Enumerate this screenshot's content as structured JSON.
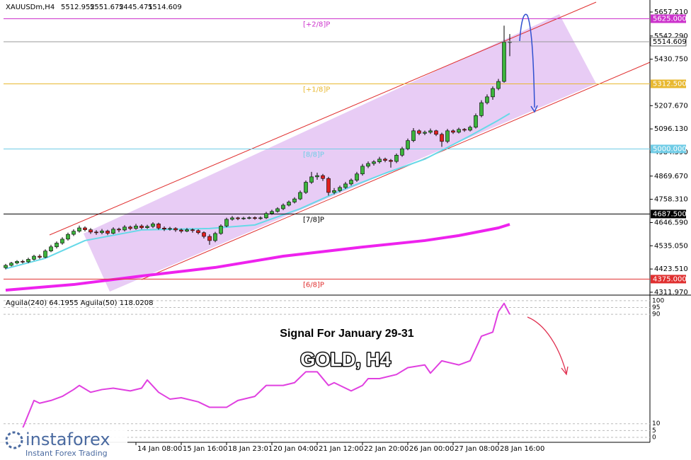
{
  "chart_data": [
    {
      "type": "candlestick",
      "symbol": "XAUUSDm,H4",
      "categories": [
        null,
        null,
        null,
        null,
        null,
        null,
        null,
        null,
        null,
        null,
        null,
        null,
        null,
        null,
        null,
        null,
        null,
        null,
        null,
        null,
        null,
        null,
        null,
        "14 Jan 08:00",
        null,
        null,
        null,
        null,
        null,
        null,
        null,
        "15 Jan 16:00",
        null,
        null,
        null,
        null,
        null,
        null,
        null,
        "18 Jan 23:01",
        null,
        null,
        null,
        null,
        null,
        null,
        null,
        "20 Jan 04:00",
        null,
        null,
        null,
        null,
        null,
        null,
        null,
        "21 Jan 12:00",
        null,
        null,
        null,
        null,
        null,
        null,
        null,
        "22 Jan 20:00",
        null,
        null,
        null,
        null,
        null,
        null,
        null,
        "26 Jan 00:00",
        null,
        null,
        null,
        null,
        null,
        null,
        null,
        "27 Jan 08:00",
        null,
        null,
        null,
        null,
        null,
        null,
        null,
        "28 Jan 16:00",
        null,
        null
      ],
      "candles": [
        [
          4430,
          4448,
          4422,
          4441
        ],
        [
          4441,
          4458,
          4436,
          4452
        ],
        [
          4452,
          4466,
          4446,
          4460
        ],
        [
          4460,
          4468,
          4450,
          4458
        ],
        [
          4458,
          4478,
          4452,
          4470
        ],
        [
          4470,
          4492,
          4464,
          4485
        ],
        [
          4485,
          4494,
          4472,
          4480
        ],
        [
          4480,
          4518,
          4476,
          4510
        ],
        [
          4510,
          4540,
          4504,
          4530
        ],
        [
          4530,
          4556,
          4522,
          4548
        ],
        [
          4548,
          4576,
          4540,
          4567
        ],
        [
          4567,
          4598,
          4560,
          4590
        ],
        [
          4590,
          4614,
          4582,
          4605
        ],
        [
          4605,
          4632,
          4598,
          4621
        ],
        [
          4621,
          4628,
          4604,
          4612
        ],
        [
          4612,
          4620,
          4592,
          4601
        ],
        [
          4601,
          4610,
          4588,
          4598
        ],
        [
          4598,
          4616,
          4590,
          4606
        ],
        [
          4606,
          4612,
          4586,
          4595
        ],
        [
          4595,
          4624,
          4590,
          4615
        ],
        [
          4615,
          4622,
          4600,
          4611
        ],
        [
          4611,
          4634,
          4604,
          4625
        ],
        [
          4625,
          4632,
          4610,
          4618
        ],
        [
          4618,
          4640,
          4612,
          4630
        ],
        [
          4630,
          4638,
          4614,
          4622
        ],
        [
          4622,
          4636,
          4616,
          4628
        ],
        [
          4628,
          4648,
          4620,
          4640
        ],
        [
          4640,
          4646,
          4612,
          4620
        ],
        [
          4620,
          4628,
          4606,
          4615
        ],
        [
          4615,
          4626,
          4608,
          4618
        ],
        [
          4618,
          4624,
          4602,
          4611
        ],
        [
          4611,
          4618,
          4596,
          4605
        ],
        [
          4605,
          4620,
          4600,
          4612
        ],
        [
          4612,
          4618,
          4598,
          4608
        ],
        [
          4608,
          4614,
          4590,
          4598
        ],
        [
          4598,
          4604,
          4570,
          4580
        ],
        [
          4580,
          4590,
          4540,
          4560
        ],
        [
          4560,
          4602,
          4552,
          4594
        ],
        [
          4594,
          4638,
          4588,
          4630
        ],
        [
          4630,
          4670,
          4624,
          4662
        ],
        [
          4662,
          4678,
          4656,
          4669
        ],
        [
          4669,
          4674,
          4658,
          4665
        ],
        [
          4665,
          4674,
          4660,
          4668
        ],
        [
          4668,
          4676,
          4662,
          4670
        ],
        [
          4670,
          4676,
          4660,
          4666
        ],
        [
          4666,
          4676,
          4660,
          4669
        ],
        [
          4669,
          4698,
          4664,
          4690
        ],
        [
          4690,
          4708,
          4684,
          4700
        ],
        [
          4700,
          4720,
          4694,
          4713
        ],
        [
          4713,
          4738,
          4706,
          4730
        ],
        [
          4730,
          4752,
          4724,
          4745
        ],
        [
          4745,
          4768,
          4738,
          4760
        ],
        [
          4760,
          4800,
          4754,
          4791
        ],
        [
          4791,
          4848,
          4784,
          4840
        ],
        [
          4840,
          4890,
          4832,
          4866
        ],
        [
          4866,
          4886,
          4852,
          4872
        ],
        [
          4872,
          4880,
          4846,
          4858
        ],
        [
          4858,
          4866,
          4776,
          4791
        ],
        [
          4791,
          4812,
          4782,
          4800
        ],
        [
          4800,
          4824,
          4792,
          4815
        ],
        [
          4815,
          4842,
          4808,
          4832
        ],
        [
          4832,
          4858,
          4824,
          4850
        ],
        [
          4850,
          4890,
          4842,
          4880
        ],
        [
          4880,
          4928,
          4872,
          4917
        ],
        [
          4917,
          4940,
          4908,
          4930
        ],
        [
          4930,
          4946,
          4920,
          4938
        ],
        [
          4938,
          4962,
          4930,
          4951
        ],
        [
          4951,
          4958,
          4936,
          4945
        ],
        [
          4945,
          4952,
          4910,
          4940
        ],
        [
          4940,
          4978,
          4932,
          4970
        ],
        [
          4970,
          5010,
          4962,
          5001
        ],
        [
          5001,
          5050,
          4994,
          5040
        ],
        [
          5040,
          5100,
          5032,
          5087
        ],
        [
          5087,
          5094,
          5066,
          5075
        ],
        [
          5075,
          5088,
          5066,
          5080
        ],
        [
          5080,
          5098,
          5072,
          5087
        ],
        [
          5087,
          5092,
          5062,
          5070
        ],
        [
          5070,
          5078,
          5010,
          5036
        ],
        [
          5036,
          5096,
          5028,
          5087
        ],
        [
          5087,
          5094,
          5072,
          5080
        ],
        [
          5080,
          5102,
          5074,
          5094
        ],
        [
          5094,
          5100,
          5082,
          5090
        ],
        [
          5090,
          5112,
          5084,
          5104
        ],
        [
          5104,
          5170,
          5098,
          5160
        ],
        [
          5160,
          5234,
          5152,
          5222
        ],
        [
          5222,
          5262,
          5214,
          5250
        ],
        [
          5250,
          5300,
          5236,
          5290
        ],
        [
          5290,
          5336,
          5282,
          5324
        ],
        [
          5324,
          5592,
          5318,
          5512
        ],
        [
          5512.952,
          5551.672,
          5445.471,
          5514.609
        ]
      ],
      "up_color": "#3cb43c",
      "down_color": "#e02020",
      "ylim": [
        4305,
        5698
      ],
      "yticks": [
        {
          "value": 5657.21,
          "label": "5657.210"
        },
        {
          "value": 5542.29,
          "label": "5542.290"
        },
        {
          "value": 5430.75,
          "label": "5430.750"
        },
        {
          "value": 5207.67,
          "label": "5207.670"
        },
        {
          "value": 5096.13,
          "label": "5096.130"
        },
        {
          "value": 4984.59,
          "label": "4984.590"
        },
        {
          "value": 4869.67,
          "label": "4869.670"
        },
        {
          "value": 4758.31,
          "label": "4758.310"
        },
        {
          "value": 4646.59,
          "label": "4646.590"
        },
        {
          "value": 4535.05,
          "label": "4535.050"
        },
        {
          "value": 4423.51,
          "label": "4423.510"
        },
        {
          "value": 4311.97,
          "label": "4311.970"
        }
      ],
      "ma_lines": [
        {
          "color": "#66d9e8",
          "width": 2,
          "x": [
            0,
            7,
            14,
            24,
            36,
            44,
            52,
            59,
            67,
            74,
            82,
            87,
            89
          ],
          "values": [
            4425,
            4475,
            4560,
            4611,
            4618,
            4635,
            4713,
            4798,
            4883,
            4951,
            5063,
            5138,
            5170
          ]
        },
        {
          "color": "#ee22ee",
          "width": 4,
          "x": [
            0,
            12,
            24,
            37,
            49,
            62,
            74,
            80,
            87,
            89
          ],
          "values": [
            4322,
            4349,
            4390,
            4431,
            4485,
            4526,
            4560,
            4584,
            4621,
            4638
          ]
        }
      ],
      "levels": [
        {
          "name": "[+2/8]P",
          "price": {
            "value": 5625,
            "label": "5625.000"
          },
          "color": "#cc33cc"
        },
        {
          "name": "[+1/8]P",
          "price": {
            "value": 5312.5,
            "label": "5312.500"
          },
          "color": "#e8b830"
        },
        {
          "name": "[8/8]P",
          "price": {
            "value": 5000,
            "label": "5000.000"
          },
          "color": "#70cce6"
        },
        {
          "name": "[7/8]P",
          "price": {
            "value": 4687.5,
            "label": "4687.500"
          },
          "color": "#000000"
        },
        {
          "name": "[6/8]P",
          "price": {
            "value": 4375,
            "label": "4375.000"
          },
          "color": "#e03030"
        }
      ]
    },
    {
      "type": "line",
      "indicator_label": "Aguila(240) 64.1955 Aguila(50) 118.0208",
      "annotations": [
        "Signal For January 29-31",
        "GOLD, H4"
      ],
      "ylim": [
        -3.6,
        102
      ],
      "yticks": [
        0,
        5,
        10,
        90,
        95,
        100
      ],
      "series": [
        {
          "color": "#e040e0",
          "x": [
            3,
            5,
            6,
            8,
            10,
            12,
            13,
            15,
            17,
            19,
            22,
            24,
            25,
            27,
            29,
            31,
            34,
            36,
            39,
            41,
            44,
            46,
            49,
            51,
            53,
            55,
            57,
            58,
            61,
            63,
            64,
            66,
            69,
            71,
            74,
            75,
            77,
            80,
            82,
            84,
            86,
            87,
            88,
            89
          ],
          "values": [
            6.7,
            27,
            25,
            27,
            30,
            35,
            38,
            33,
            35,
            36,
            34,
            36,
            42,
            33,
            28,
            29,
            26,
            22,
            22,
            27,
            30,
            38,
            38,
            40,
            48,
            48,
            38,
            40,
            34,
            38,
            43,
            43,
            46,
            51,
            53,
            47,
            56,
            53,
            56,
            74,
            77,
            92,
            98,
            90
          ]
        }
      ]
    }
  ],
  "watermark": {
    "brand": "instaforex",
    "tagline": "Instant Forex Trading"
  }
}
